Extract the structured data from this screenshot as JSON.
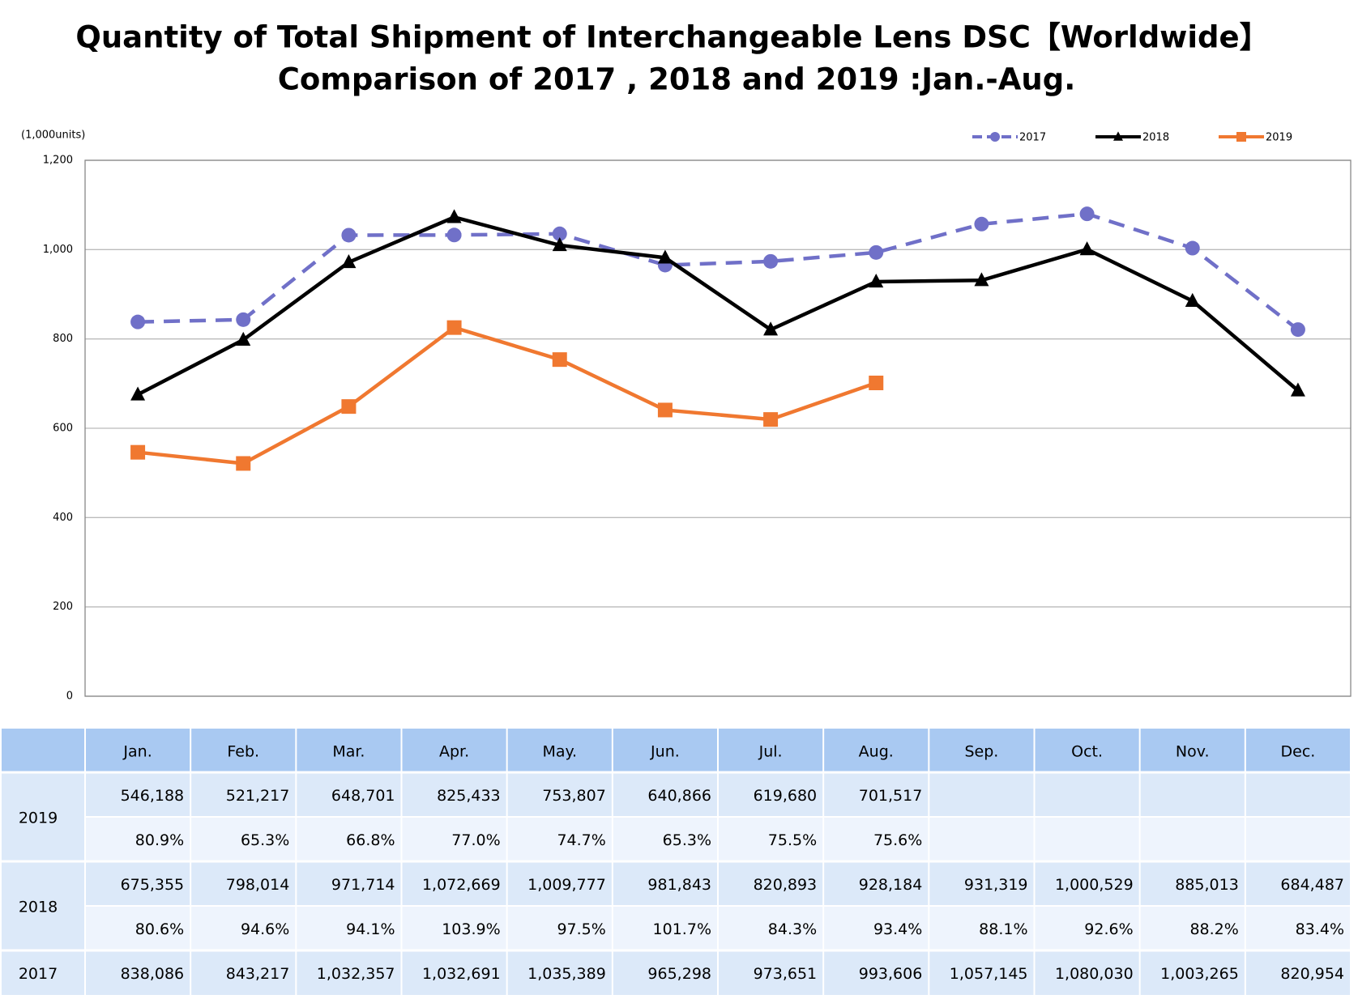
{
  "chart_data": {
    "type": "line",
    "title": "Quantity of Total Shipment of Interchangeable Lens DSC【Worldwide】",
    "subtitle": "Comparison of 2017 , 2018 and 2019 :Jan.-Aug.",
    "y_label": "(1,000units)",
    "categories": [
      "Jan.",
      "Feb.",
      "Mar.",
      "Apr.",
      "May.",
      "Jun.",
      "Jul.",
      "Aug.",
      "Sep.",
      "Oct.",
      "Nov.",
      "Dec."
    ],
    "ylim": [
      0,
      1200
    ],
    "yticks": [
      0,
      200,
      400,
      600,
      800,
      {
        "value": 1000,
        "label": "1,000"
      },
      {
        "value": 1200,
        "label": "1,200"
      }
    ],
    "grid": true,
    "legend": "top-right",
    "series": [
      {
        "name": "2017",
        "color": "#7070c8",
        "marker": "circle",
        "dash": true,
        "values": [
          838.086,
          843.217,
          1032.357,
          1032.691,
          1035.389,
          965.298,
          973.651,
          993.606,
          1057.145,
          1080.03,
          1003.265,
          820.954
        ],
        "value_labels": [
          "838,086",
          "843,217",
          "1,032,357",
          "1,032,691",
          "1,035,389",
          "965,298",
          "973,651",
          "993,606",
          "1,057,145",
          "1,080,030",
          "1,003,265",
          "820,954"
        ]
      },
      {
        "name": "2018",
        "color": "#000000",
        "marker": "triangle",
        "dash": false,
        "values": [
          675.355,
          798.014,
          971.714,
          1072.669,
          1009.777,
          981.843,
          820.893,
          928.184,
          931.319,
          1000.529,
          885.013,
          684.487
        ],
        "value_labels": [
          "675,355",
          "798,014",
          "971,714",
          "1,072,669",
          "1,009,777",
          "981,843",
          "820,893",
          "928,184",
          "931,319",
          "1,000,529",
          "885,013",
          "684,487"
        ],
        "ratio_labels": [
          "80.6%",
          "94.6%",
          "94.1%",
          "103.9%",
          "97.5%",
          "101.7%",
          "84.3%",
          "93.4%",
          "88.1%",
          "92.6%",
          "88.2%",
          "83.4%"
        ]
      },
      {
        "name": "2019",
        "color": "#f07830",
        "marker": "square",
        "dash": false,
        "values": [
          546.188,
          521.217,
          648.701,
          825.433,
          753.807,
          640.866,
          619.68,
          701.517,
          null,
          null,
          null,
          null
        ],
        "value_labels": [
          "546,188",
          "521,217",
          "648,701",
          "825,433",
          "753,807",
          "640,866",
          "619,680",
          "701,517",
          null,
          null,
          null,
          null
        ],
        "ratio_labels": [
          "80.9%",
          "65.3%",
          "66.8%",
          "77.0%",
          "74.7%",
          "65.3%",
          "75.5%",
          "75.6%",
          null,
          null,
          null,
          null
        ]
      }
    ]
  }
}
